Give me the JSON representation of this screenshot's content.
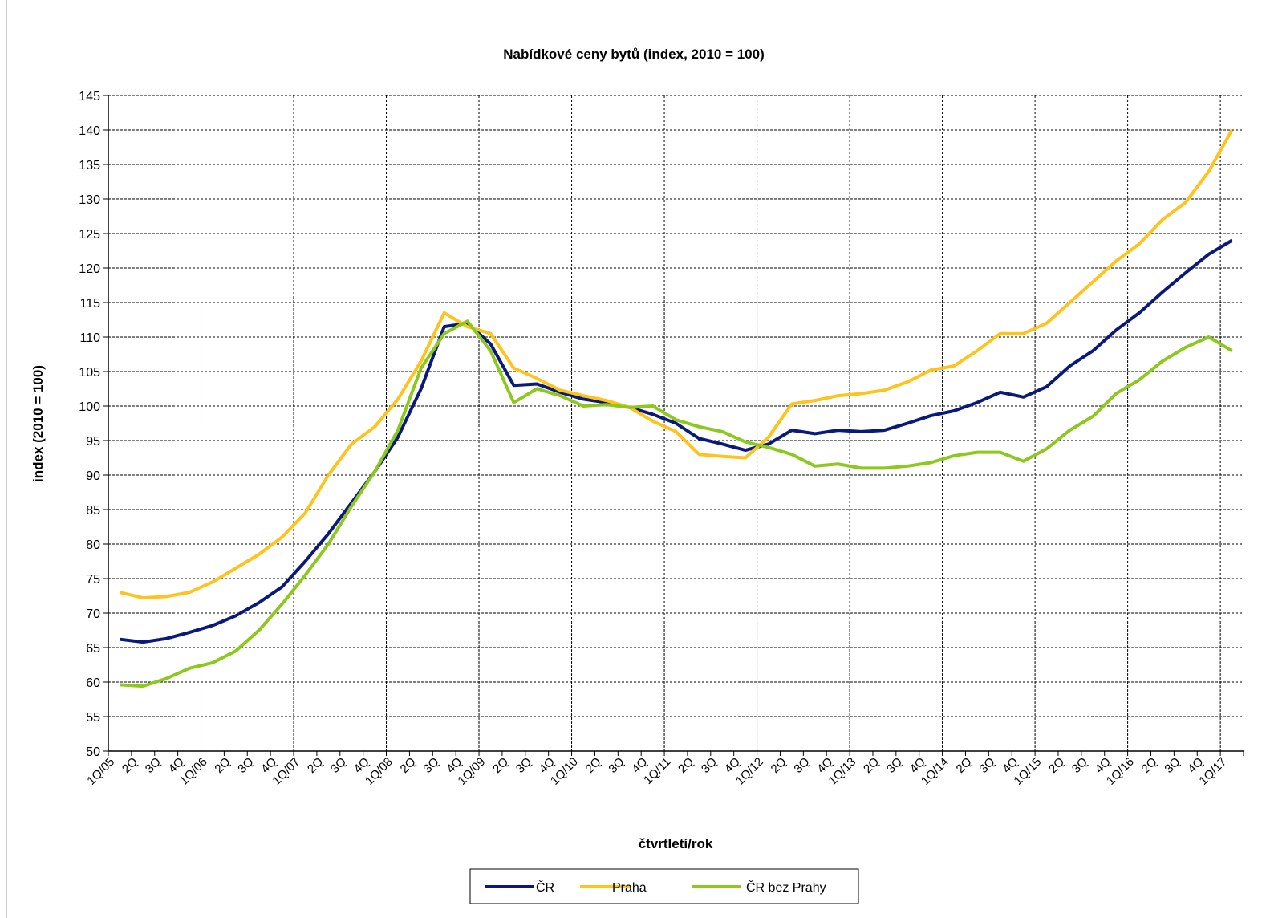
{
  "chart_data": {
    "type": "line",
    "title": "Nabídkové ceny bytů (index, 2010 = 100)",
    "y_label": "index (2010 = 100)",
    "x_label": "čtvrtletí/rok",
    "categories": [
      "1Q/05",
      "2Q",
      "3Q",
      "4Q",
      "1Q/06",
      "2Q",
      "3Q",
      "4Q",
      "1Q/07",
      "2Q",
      "3Q",
      "4Q",
      "1Q/08",
      "2Q",
      "3Q",
      "4Q",
      "1Q/09",
      "2Q",
      "3Q",
      "4Q",
      "1Q/10",
      "2Q",
      "3Q",
      "4Q",
      "1Q/11",
      "2Q",
      "3Q",
      "4Q",
      "1Q/12",
      "2Q",
      "3Q",
      "4Q",
      "1Q/13",
      "2Q",
      "3Q",
      "4Q",
      "1Q/14",
      "2Q",
      "3Q",
      "4Q",
      "1Q/15",
      "2Q",
      "3Q",
      "4Q",
      "1Q/16",
      "2Q",
      "3Q",
      "4Q",
      "1Q/17"
    ],
    "series": [
      {
        "name": "ČR",
        "color": "#0a1a7a",
        "values": [
          66.2,
          65.8,
          66.3,
          67.2,
          68.2,
          69.6,
          71.5,
          73.8,
          77.5,
          81.5,
          86,
          90.5,
          95.5,
          102.5,
          111.5,
          112,
          109,
          103,
          103.2,
          102,
          101,
          100.5,
          99.8,
          98.8,
          97.5,
          95.3,
          94.5,
          93.6,
          94.5,
          96.5,
          96,
          96.5,
          96.3,
          96.5,
          97.5,
          98.6,
          99.3,
          100.5,
          102,
          101.3,
          102.8,
          105.8,
          108,
          111,
          113.5,
          116.5,
          119.3,
          122,
          124
        ]
      },
      {
        "name": "Praha",
        "color": "#ffc31e",
        "values": [
          73,
          72.2,
          72.4,
          73,
          74.5,
          76.5,
          78.5,
          81,
          84.5,
          90,
          94.5,
          97,
          101,
          106.5,
          113.5,
          111.5,
          110.5,
          105.5,
          104,
          102.3,
          101.5,
          100.8,
          99.8,
          97.8,
          96.3,
          93,
          92.7,
          92.5,
          95.5,
          100.3,
          100.8,
          101.5,
          101.8,
          102.3,
          103.5,
          105.2,
          105.8,
          108,
          110.5,
          110.5,
          112,
          115,
          118,
          121,
          123.5,
          127,
          129.5,
          134,
          140
        ]
      },
      {
        "name": "ČR bez Prahy",
        "color": "#8cc81e",
        "values": [
          59.6,
          59.4,
          60.5,
          62,
          62.8,
          64.5,
          67.5,
          71.3,
          75.5,
          80,
          85.5,
          90.5,
          96.5,
          105.5,
          110.5,
          112.3,
          108,
          100.5,
          102.5,
          101.5,
          100,
          100.2,
          99.8,
          100,
          98,
          97,
          96.3,
          94.8,
          94,
          93,
          91.3,
          91.6,
          91,
          91,
          91.3,
          91.8,
          92.8,
          93.3,
          93.3,
          92,
          93.8,
          96.5,
          98.5,
          101.8,
          103.8,
          106.5,
          108.5,
          110,
          108
        ]
      }
    ],
    "ylim": [
      50,
      145
    ],
    "yticks": [
      50,
      55,
      60,
      65,
      70,
      75,
      80,
      85,
      90,
      95,
      100,
      105,
      110,
      115,
      120,
      125,
      130,
      135,
      140,
      145
    ],
    "grid": true
  }
}
